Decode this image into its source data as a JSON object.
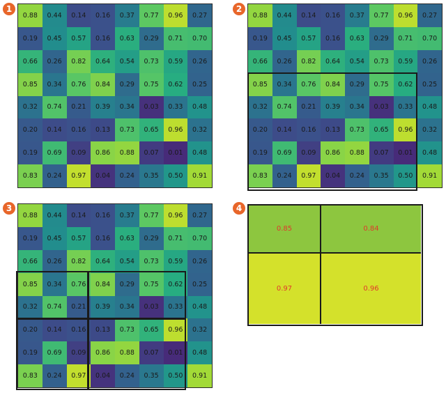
{
  "markers": [
    "1",
    "2",
    "3",
    "4"
  ],
  "matrix": [
    [
      "0.88",
      "0.44",
      "0.14",
      "0.16",
      "0.37",
      "0.77",
      "0.96",
      "0.27"
    ],
    [
      "0.19",
      "0.45",
      "0.57",
      "0.16",
      "0.63",
      "0.29",
      "0.71",
      "0.70"
    ],
    [
      "0.66",
      "0.26",
      "0.82",
      "0.64",
      "0.54",
      "0.73",
      "0.59",
      "0.26"
    ],
    [
      "0.85",
      "0.34",
      "0.76",
      "0.84",
      "0.29",
      "0.75",
      "0.62",
      "0.25"
    ],
    [
      "0.32",
      "0.74",
      "0.21",
      "0.39",
      "0.34",
      "0.03",
      "0.33",
      "0.48"
    ],
    [
      "0.20",
      "0.14",
      "0.16",
      "0.13",
      "0.73",
      "0.65",
      "0.96",
      "0.32"
    ],
    [
      "0.19",
      "0.69",
      "0.09",
      "0.86",
      "0.88",
      "0.07",
      "0.01",
      "0.48"
    ],
    [
      "0.83",
      "0.24",
      "0.97",
      "0.04",
      "0.24",
      "0.35",
      "0.50",
      "0.91"
    ]
  ],
  "pooled": [
    [
      "0.85",
      "0.84"
    ],
    [
      "0.97",
      "0.96"
    ]
  ],
  "colors": {
    "marker": "#e8662a",
    "pooled_value_text": "#e0392b",
    "pooled_green": "#8dc63f",
    "pooled_yellow": "#d4e12b"
  }
}
